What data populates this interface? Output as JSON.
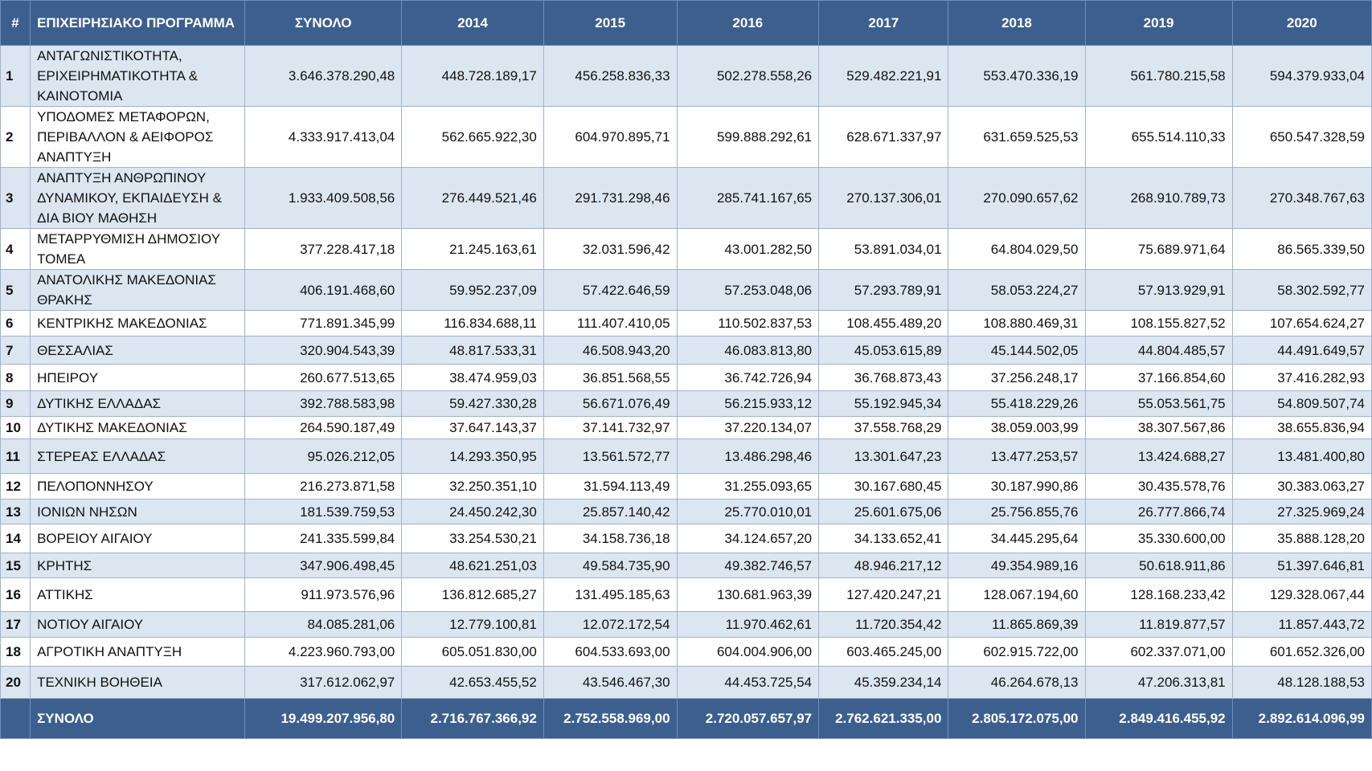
{
  "header": {
    "cols": [
      "#",
      "ΕΠΙΧΕΙΡΗΣΙΑΚΟ ΠΡΟΓΡΑΜΜΑ",
      "ΣΥΝΟΛΟ",
      "2014",
      "2015",
      "2016",
      "2017",
      "2018",
      "2019",
      "2020"
    ]
  },
  "rows": [
    {
      "id": "1",
      "name": "ΑΝΤΑΓΩΝΙΣΤΙΚΟΤΗΤΑ, ΕΡΙΧΕΙΡΗΜΑΤΙΚΟΤΗΤΑ & ΚΑΙΝΟΤΟΜΙΑ",
      "vals": [
        "3.646.378.290,48",
        "448.728.189,17",
        "456.258.836,33",
        "502.278.558,26",
        "529.482.221,91",
        "553.470.336,19",
        "561.780.215,58",
        "594.379.933,04"
      ]
    },
    {
      "id": "2",
      "name": "ΥΠΟΔΟΜΕΣ ΜΕΤΑΦΟΡΩΝ, ΠΕΡΙΒΑΛΛΟΝ & ΑΕΙΦΟΡΟΣ ΑΝΑΠΤΥΞΗ",
      "vals": [
        "4.333.917.413,04",
        "562.665.922,30",
        "604.970.895,71",
        "599.888.292,61",
        "628.671.337,97",
        "631.659.525,53",
        "655.514.110,33",
        "650.547.328,59"
      ]
    },
    {
      "id": "3",
      "name": "ΑΝΑΠΤΥΞΗ ΑΝΘΡΩΠΙΝΟΥ ΔΥΝΑΜΙΚΟΥ, ΕΚΠΑΙΔΕΥΣΗ & ΔΙΑ ΒΙΟΥ ΜΑΘΗΣΗ",
      "vals": [
        "1.933.409.508,56",
        "276.449.521,46",
        "291.731.298,46",
        "285.741.167,65",
        "270.137.306,01",
        "270.090.657,62",
        "268.910.789,73",
        "270.348.767,63"
      ]
    },
    {
      "id": "4",
      "name": "ΜΕΤΑΡΡΥΘΜΙΣΗ ΔΗΜΟΣΙΟΥ ΤΟΜΕΑ",
      "vals": [
        "377.228.417,18",
        "21.245.163,61",
        "32.031.596,42",
        "43.001.282,50",
        "53.891.034,01",
        "64.804.029,50",
        "75.689.971,64",
        "86.565.339,50"
      ]
    },
    {
      "id": "5",
      "name": "ΑΝΑΤΟΛΙΚΗΣ ΜΑΚΕΔΟΝΙΑΣ ΘΡΑΚΗΣ",
      "vals": [
        "406.191.468,60",
        "59.952.237,09",
        "57.422.646,59",
        "57.253.048,06",
        "57.293.789,91",
        "58.053.224,27",
        "57.913.929,91",
        "58.302.592,77"
      ]
    },
    {
      "id": "6",
      "name": "ΚΕΝΤΡΙΚΗΣ ΜΑΚΕΔΟΝΙΑΣ",
      "vals": [
        "771.891.345,99",
        "116.834.688,11",
        "111.407.410,05",
        "110.502.837,53",
        "108.455.489,20",
        "108.880.469,31",
        "108.155.827,52",
        "107.654.624,27"
      ]
    },
    {
      "id": "7",
      "name": "ΘΕΣΣΑΛΙΑΣ",
      "vals": [
        "320.904.543,39",
        "48.817.533,31",
        "46.508.943,20",
        "46.083.813,80",
        "45.053.615,89",
        "45.144.502,05",
        "44.804.485,57",
        "44.491.649,57"
      ]
    },
    {
      "id": "8",
      "name": "ΗΠΕΙΡΟΥ",
      "vals": [
        "260.677.513,65",
        "38.474.959,03",
        "36.851.568,55",
        "36.742.726,94",
        "36.768.873,43",
        "37.256.248,17",
        "37.166.854,60",
        "37.416.282,93"
      ]
    },
    {
      "id": "9",
      "name": "ΔΥΤΙΚΗΣ ΕΛΛΑΔΑΣ",
      "vals": [
        "392.788.583,98",
        "59.427.330,28",
        "56.671.076,49",
        "56.215.933,12",
        "55.192.945,34",
        "55.418.229,26",
        "55.053.561,75",
        "54.809.507,74"
      ]
    },
    {
      "id": "10",
      "name": "ΔΥΤΙΚΗΣ ΜΑΚΕΔΟΝΙΑΣ",
      "vals": [
        "264.590.187,49",
        "37.647.143,37",
        "37.141.732,97",
        "37.220.134,07",
        "37.558.768,29",
        "38.059.003,99",
        "38.307.567,86",
        "38.655.836,94"
      ]
    },
    {
      "id": "11",
      "name": "ΣΤΕΡΕΑΣ ΕΛΛΑΔΑΣ",
      "vals": [
        "95.026.212,05",
        "14.293.350,95",
        "13.561.572,77",
        "13.486.298,46",
        "13.301.647,23",
        "13.477.253,57",
        "13.424.688,27",
        "13.481.400,80"
      ]
    },
    {
      "id": "12",
      "name": "ΠΕΛΟΠΟΝΝΗΣΟΥ",
      "vals": [
        "216.273.871,58",
        "32.250.351,10",
        "31.594.113,49",
        "31.255.093,65",
        "30.167.680,45",
        "30.187.990,86",
        "30.435.578,76",
        "30.383.063,27"
      ]
    },
    {
      "id": "13",
      "name": "ΙΟΝΙΩΝ ΝΗΣΩΝ",
      "vals": [
        "181.539.759,53",
        "24.450.242,30",
        "25.857.140,42",
        "25.770.010,01",
        "25.601.675,06",
        "25.756.855,76",
        "26.777.866,74",
        "27.325.969,24"
      ]
    },
    {
      "id": "14",
      "name": "ΒΟΡΕΙΟΥ ΑΙΓΑΙΟΥ",
      "vals": [
        "241.335.599,84",
        "33.254.530,21",
        "34.158.736,18",
        "34.124.657,20",
        "34.133.652,41",
        "34.445.295,64",
        "35.330.600,00",
        "35.888.128,20"
      ]
    },
    {
      "id": "15",
      "name": "ΚΡΗΤΗΣ",
      "vals": [
        "347.906.498,45",
        "48.621.251,03",
        "49.584.735,90",
        "49.382.746,57",
        "48.946.217,12",
        "49.354.989,16",
        "50.618.911,86",
        "51.397.646,81"
      ]
    },
    {
      "id": "16",
      "name": "ΑΤΤΙΚΗΣ",
      "vals": [
        "911.973.576,96",
        "136.812.685,27",
        "131.495.185,63",
        "130.681.963,39",
        "127.420.247,21",
        "128.067.194,60",
        "128.168.233,42",
        "129.328.067,44"
      ]
    },
    {
      "id": "17",
      "name": "ΝΟΤΙΟΥ ΑΙΓΑΙΟΥ",
      "vals": [
        "84.085.281,06",
        "12.779.100,81",
        "12.072.172,54",
        "11.970.462,61",
        "11.720.354,42",
        "11.865.869,39",
        "11.819.877,57",
        "11.857.443,72"
      ]
    },
    {
      "id": "18",
      "name": "ΑΓΡΟΤΙΚΗ ΑΝΑΠΤΥΞΗ",
      "vals": [
        "4.223.960.793,00",
        "605.051.830,00",
        "604.533.693,00",
        "604.004.906,00",
        "603.465.245,00",
        "602.915.722,00",
        "602.337.071,00",
        "601.652.326,00"
      ]
    },
    {
      "id": "20",
      "name": "ΤΕΧΝΙΚΗ ΒΟΗΘΕΙΑ",
      "vals": [
        "317.612.062,97",
        "42.653.455,52",
        "43.546.467,30",
        "44.453.725,54",
        "45.359.234,14",
        "46.264.678,13",
        "47.206.313,81",
        "48.128.188,53"
      ]
    }
  ],
  "total": {
    "label": "ΣΥΝΟΛΟ",
    "vals": [
      "19.499.207.956,80",
      "2.716.767.366,92",
      "2.752.558.969,00",
      "2.720.057.657,97",
      "2.762.621.335,00",
      "2.805.172.075,00",
      "2.849.416.455,92",
      "2.892.614.096,99"
    ]
  },
  "colors": {
    "header_bg": "#3d5f8e",
    "band": "#dce6f1",
    "border": "#9fb3cc"
  }
}
